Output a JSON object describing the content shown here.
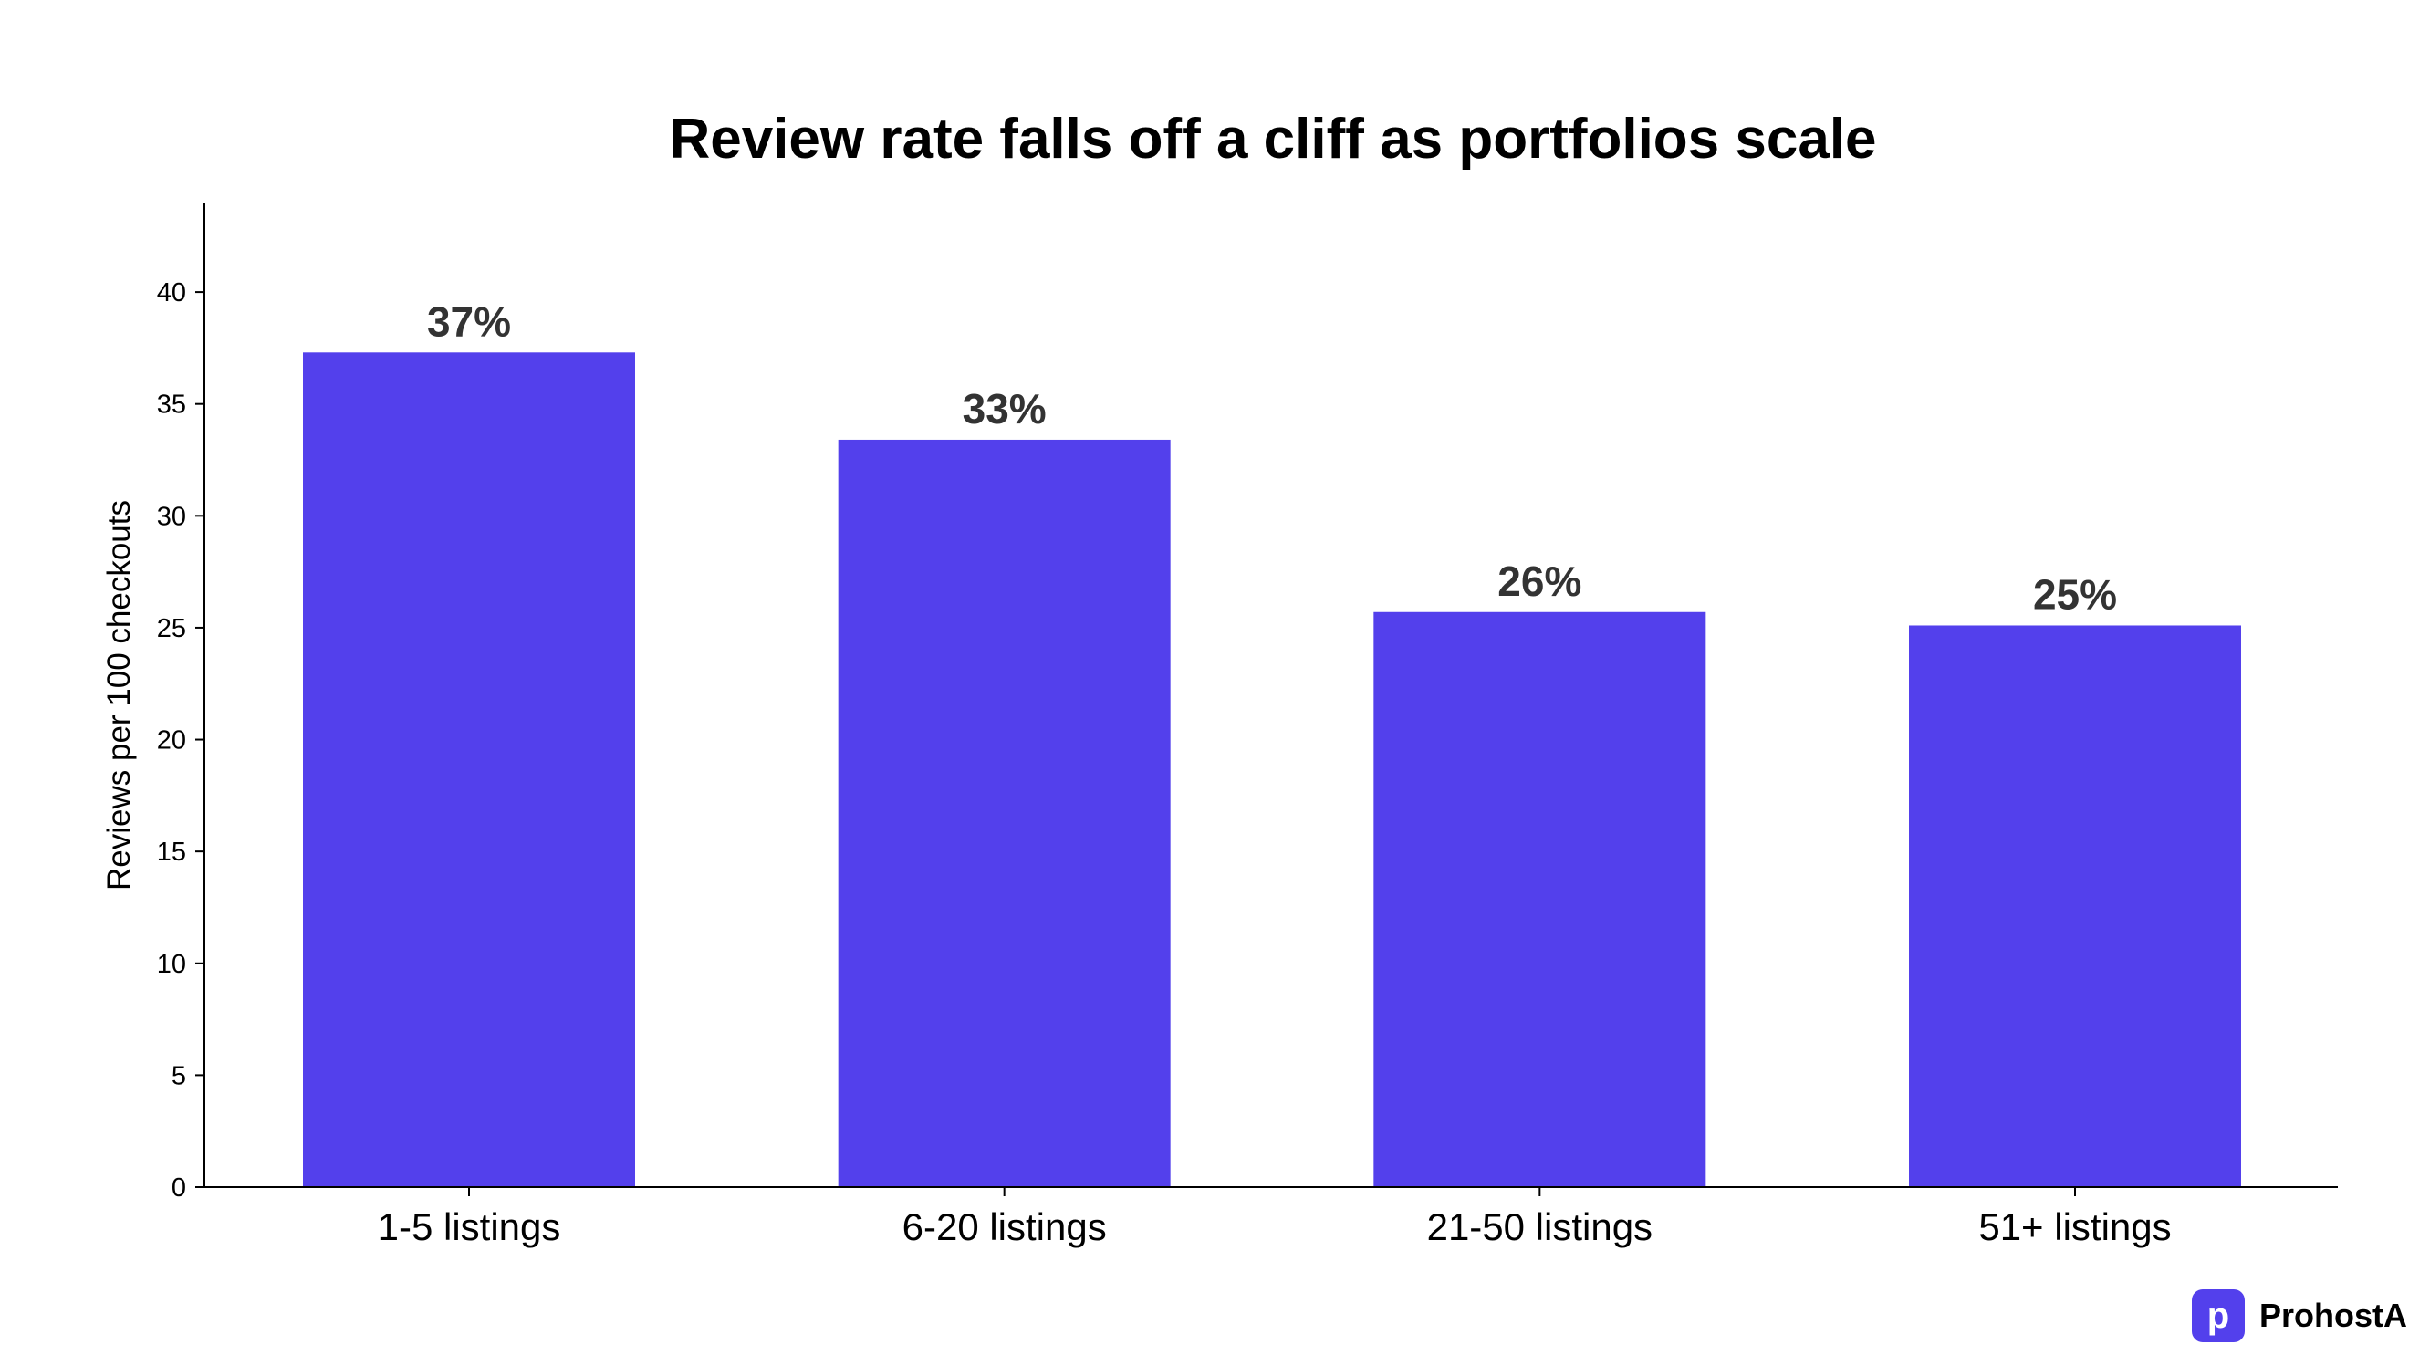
{
  "chart_data": {
    "type": "bar",
    "title": "Review rate falls off a cliff as portfolios scale",
    "xlabel": "",
    "ylabel": "Reviews per 100 checkouts",
    "categories": [
      "1-5 listings",
      "6-20 listings",
      "21-50 listings",
      "51+ listings"
    ],
    "values": [
      37.3,
      33.4,
      25.7,
      25.1
    ],
    "data_labels": [
      "37%",
      "33%",
      "26%",
      "25%"
    ],
    "ylim": [
      0,
      44
    ],
    "yticks": [
      0,
      5,
      10,
      15,
      20,
      25,
      30,
      35,
      40
    ],
    "grid": false,
    "legend": "none",
    "bar_color": "#5340ec"
  },
  "brand": {
    "logo_letter": "p",
    "name": "ProhostAI"
  }
}
